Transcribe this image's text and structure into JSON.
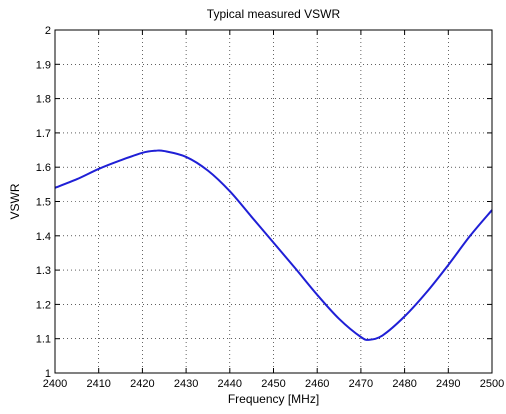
{
  "chart_data": {
    "type": "line",
    "title": "Typical measured VSWR",
    "xlabel": "Frequency [MHz]",
    "ylabel": "VSWR",
    "xlim": [
      2400,
      2500
    ],
    "ylim": [
      1,
      2
    ],
    "x_ticks": [
      2400,
      2410,
      2420,
      2430,
      2440,
      2450,
      2460,
      2470,
      2480,
      2490,
      2500
    ],
    "y_ticks": [
      1,
      1.1,
      1.2,
      1.3,
      1.4,
      1.5,
      1.6,
      1.7,
      1.8,
      1.9,
      2
    ],
    "grid": true,
    "series": [
      {
        "color": "#1f1fd6",
        "x": [
          2400,
          2405,
          2410,
          2415,
          2420,
          2423,
          2425,
          2430,
          2435,
          2440,
          2445,
          2450,
          2455,
          2460,
          2465,
          2470,
          2472,
          2475,
          2480,
          2485,
          2490,
          2495,
          2500
        ],
        "y": [
          1.54,
          1.565,
          1.595,
          1.62,
          1.642,
          1.648,
          1.647,
          1.63,
          1.59,
          1.53,
          1.455,
          1.38,
          1.305,
          1.228,
          1.158,
          1.105,
          1.097,
          1.11,
          1.165,
          1.235,
          1.315,
          1.4,
          1.475
        ]
      }
    ]
  }
}
